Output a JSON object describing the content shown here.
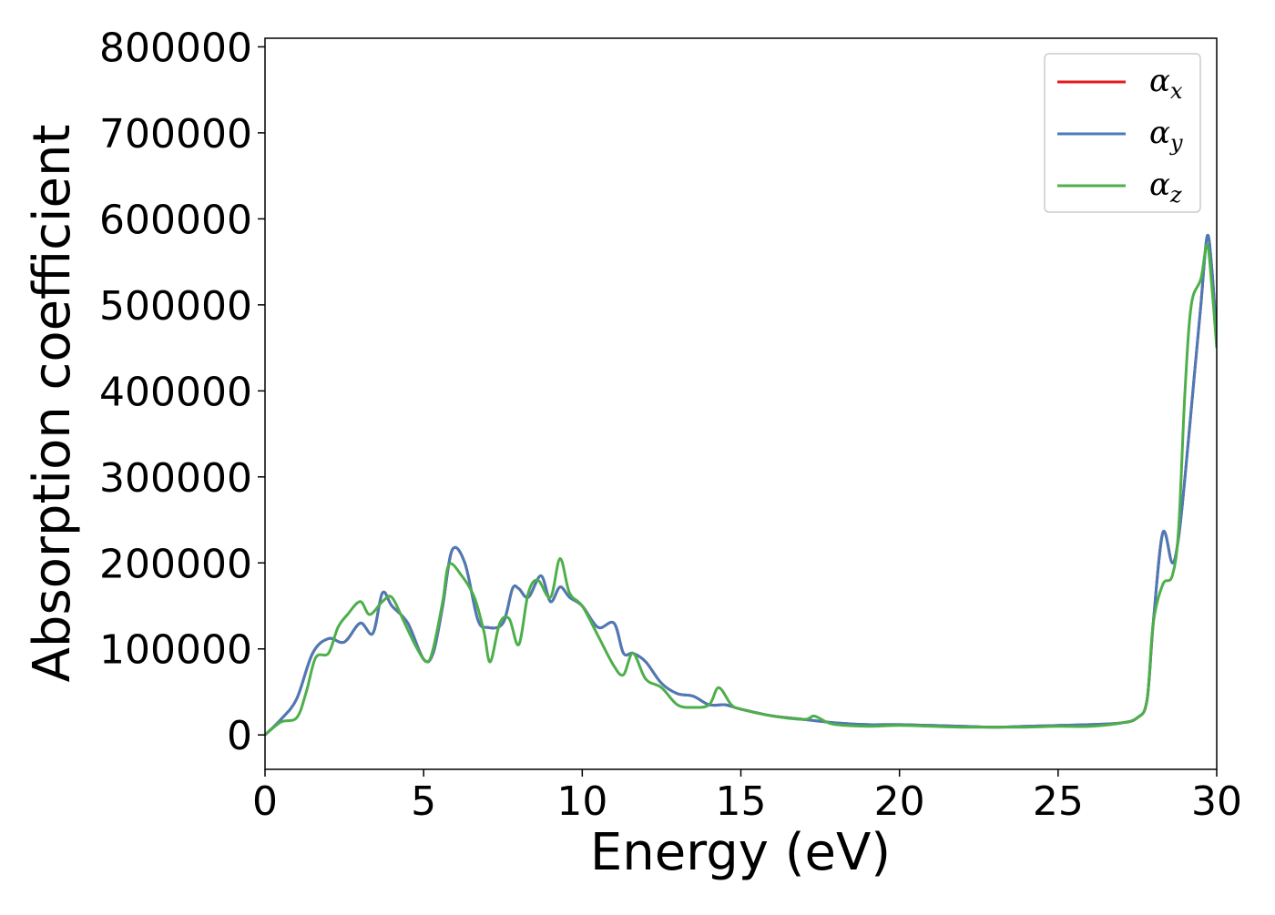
{
  "chart_data": {
    "type": "line",
    "title": "",
    "xlabel": "Energy (eV)",
    "ylabel": "Absorption coefficient",
    "xlim": [
      0,
      30
    ],
    "ylim": [
      -40000,
      810000
    ],
    "xticks": [
      0,
      5,
      10,
      15,
      20,
      25,
      30
    ],
    "xtick_labels": [
      "0",
      "5",
      "10",
      "15",
      "20",
      "25",
      "30"
    ],
    "yticks": [
      0,
      100000,
      200000,
      300000,
      400000,
      500000,
      600000,
      700000,
      800000
    ],
    "ytick_labels": [
      "0",
      "100000",
      "200000",
      "300000",
      "400000",
      "500000",
      "600000",
      "700000",
      "800000"
    ],
    "grid": false,
    "legend_position": "top-right",
    "series": [
      {
        "name": "αx",
        "legend_base": "α",
        "legend_sub": "x",
        "color": "#e41a1c",
        "x": [
          0,
          0.5,
          1.0,
          1.5,
          2.0,
          2.5,
          3.0,
          3.4,
          3.7,
          4.0,
          4.5,
          5.0,
          5.3,
          5.6,
          5.9,
          6.3,
          6.7,
          7.0,
          7.5,
          7.8,
          8.0,
          8.3,
          8.7,
          9.0,
          9.3,
          9.6,
          10.0,
          10.5,
          11.0,
          11.3,
          11.6,
          12.0,
          12.5,
          13.0,
          13.5,
          14.0,
          14.5,
          15.0,
          16.0,
          17.0,
          18.0,
          19.0,
          20.0,
          21.0,
          22.0,
          23.0,
          24.0,
          25.0,
          26.0,
          27.0,
          27.5,
          27.8,
          28.0,
          28.3,
          28.6,
          28.8,
          29.0,
          29.3,
          29.5,
          29.7,
          29.85,
          30.0
        ],
        "y": [
          0,
          18000,
          42000,
          95000,
          112000,
          108000,
          130000,
          118000,
          165000,
          150000,
          130000,
          88000,
          95000,
          150000,
          215000,
          200000,
          135000,
          125000,
          130000,
          170000,
          170000,
          160000,
          185000,
          155000,
          172000,
          160000,
          150000,
          125000,
          130000,
          95000,
          95000,
          85000,
          60000,
          48000,
          45000,
          35000,
          35000,
          30000,
          22000,
          18000,
          14000,
          12000,
          12000,
          11000,
          10000,
          9000,
          10000,
          11000,
          12000,
          14000,
          20000,
          40000,
          130000,
          235000,
          200000,
          230000,
          300000,
          420000,
          500000,
          580000,
          540000,
          460000
        ]
      },
      {
        "name": "αy",
        "legend_base": "α",
        "legend_sub": "y",
        "color": "#4a7ab8",
        "x": [
          0,
          0.5,
          1.0,
          1.5,
          2.0,
          2.5,
          3.0,
          3.4,
          3.7,
          4.0,
          4.5,
          5.0,
          5.3,
          5.6,
          5.9,
          6.3,
          6.7,
          7.0,
          7.5,
          7.8,
          8.0,
          8.3,
          8.7,
          9.0,
          9.3,
          9.6,
          10.0,
          10.5,
          11.0,
          11.3,
          11.6,
          12.0,
          12.5,
          13.0,
          13.5,
          14.0,
          14.5,
          15.0,
          16.0,
          17.0,
          18.0,
          19.0,
          20.0,
          21.0,
          22.0,
          23.0,
          24.0,
          25.0,
          26.0,
          27.0,
          27.5,
          27.8,
          28.0,
          28.3,
          28.6,
          28.8,
          29.0,
          29.3,
          29.5,
          29.7,
          29.85,
          30.0
        ],
        "y": [
          0,
          18000,
          42000,
          95000,
          112000,
          108000,
          130000,
          118000,
          165000,
          150000,
          130000,
          88000,
          95000,
          150000,
          215000,
          200000,
          135000,
          125000,
          130000,
          170000,
          170000,
          160000,
          185000,
          155000,
          172000,
          160000,
          150000,
          125000,
          130000,
          95000,
          95000,
          85000,
          60000,
          48000,
          45000,
          35000,
          35000,
          30000,
          22000,
          18000,
          14000,
          12000,
          12000,
          11000,
          10000,
          9000,
          10000,
          11000,
          12000,
          14000,
          20000,
          40000,
          130000,
          235000,
          200000,
          230000,
          300000,
          420000,
          500000,
          580000,
          540000,
          460000
        ]
      },
      {
        "name": "αz",
        "legend_base": "α",
        "legend_sub": "z",
        "color": "#4daf4a",
        "x": [
          0,
          0.5,
          1.0,
          1.3,
          1.6,
          2.0,
          2.3,
          2.6,
          3.0,
          3.3,
          3.7,
          4.0,
          4.4,
          4.8,
          5.1,
          5.3,
          5.6,
          5.8,
          6.2,
          6.6,
          6.9,
          7.1,
          7.4,
          7.7,
          8.0,
          8.3,
          8.6,
          9.0,
          9.3,
          9.6,
          10.0,
          10.5,
          11.0,
          11.3,
          11.6,
          12.0,
          12.5,
          13.0,
          13.5,
          14.0,
          14.3,
          14.7,
          15.0,
          16.0,
          17.0,
          17.3,
          17.7,
          18.0,
          19.0,
          20.0,
          21.0,
          22.0,
          23.0,
          24.0,
          25.0,
          26.0,
          27.0,
          27.5,
          27.8,
          28.0,
          28.3,
          28.6,
          28.8,
          29.0,
          29.2,
          29.5,
          29.7,
          29.85,
          30.0
        ],
        "y": [
          0,
          15000,
          20000,
          50000,
          90000,
          95000,
          125000,
          140000,
          155000,
          140000,
          155000,
          160000,
          130000,
          100000,
          85000,
          100000,
          155000,
          198000,
          185000,
          160000,
          120000,
          85000,
          130000,
          135000,
          105000,
          165000,
          180000,
          160000,
          205000,
          165000,
          150000,
          115000,
          80000,
          70000,
          95000,
          65000,
          55000,
          35000,
          32000,
          35000,
          55000,
          35000,
          30000,
          22000,
          18000,
          22000,
          15000,
          12000,
          10000,
          11000,
          10000,
          9000,
          9000,
          9000,
          10000,
          10000,
          14000,
          20000,
          40000,
          130000,
          175000,
          185000,
          240000,
          400000,
          500000,
          530000,
          570000,
          520000,
          450000
        ]
      }
    ]
  }
}
